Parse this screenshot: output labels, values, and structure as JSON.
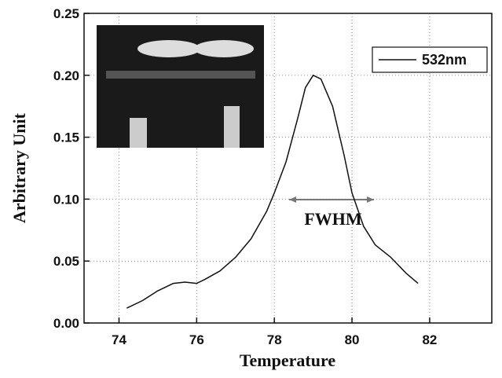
{
  "chart_data": {
    "type": "line",
    "xlabel": "Temperature",
    "ylabel": "Arbitrary Unit",
    "annotation": "FWHM",
    "x": [
      74.2,
      74.6,
      75.0,
      75.4,
      75.7,
      76.0,
      76.2,
      76.6,
      77.0,
      77.4,
      77.8,
      78.0,
      78.3,
      78.6,
      78.8,
      79.0,
      79.2,
      79.5,
      79.8,
      80.0,
      80.3,
      80.6,
      81.0,
      81.4,
      81.7
    ],
    "series": [
      {
        "name": "532nm",
        "color": "#111111",
        "values": [
          0.012,
          0.018,
          0.026,
          0.032,
          0.033,
          0.032,
          0.035,
          0.042,
          0.053,
          0.068,
          0.09,
          0.105,
          0.13,
          0.165,
          0.19,
          0.2,
          0.197,
          0.175,
          0.135,
          0.105,
          0.078,
          0.063,
          0.053,
          0.04,
          0.032
        ]
      }
    ],
    "xlim": [
      73.1,
      83.6
    ],
    "xticks": [
      74,
      76,
      78,
      80,
      82
    ],
    "ylim": [
      0,
      0.25
    ],
    "yticks": [
      {
        "value": 0,
        "label": "0.00"
      },
      {
        "value": 0.05,
        "label": "0.05"
      },
      {
        "value": 0.1,
        "label": "0.10"
      },
      {
        "value": 0.15,
        "label": "0.15"
      },
      {
        "value": 0.2,
        "label": "0.20"
      },
      {
        "value": 0.25,
        "label": "0.25"
      }
    ],
    "grid": true,
    "legend": "upper right"
  }
}
